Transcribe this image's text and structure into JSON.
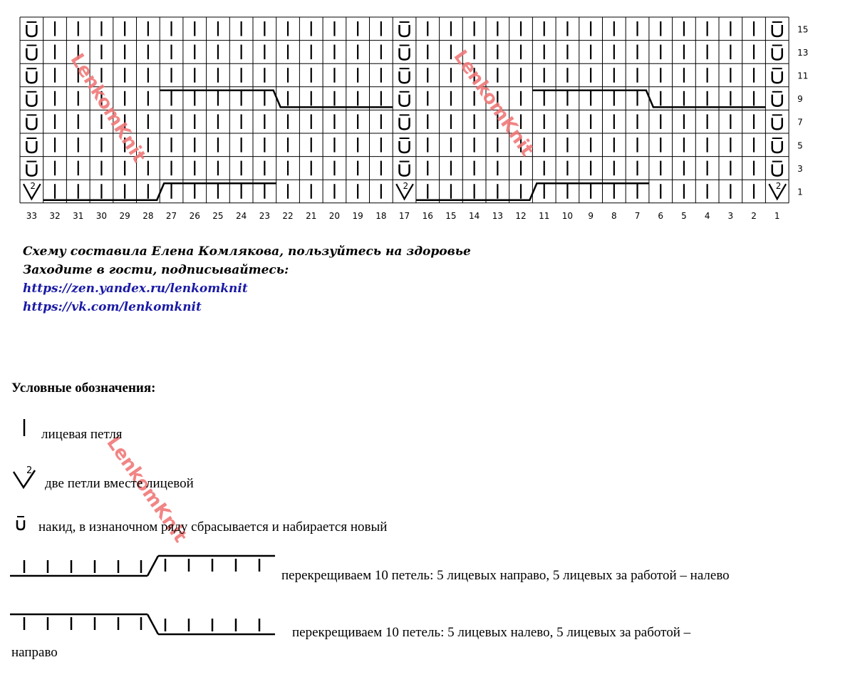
{
  "chart": {
    "row_labels": [
      "15",
      "13",
      "11",
      "9",
      "7",
      "5",
      "3",
      "1"
    ],
    "column_labels": [
      "33",
      "32",
      "31",
      "30",
      "29",
      "28",
      "27",
      "26",
      "25",
      "24",
      "23",
      "22",
      "21",
      "20",
      "19",
      "18",
      "17",
      "16",
      "15",
      "14",
      "13",
      "12",
      "11",
      "10",
      "9",
      "8",
      "7",
      "6",
      "5",
      "4",
      "3",
      "2",
      "1"
    ],
    "decrease_number": "2"
  },
  "note": {
    "line1": "Схему составила Елена Комлякова, пользуйтесь на здоровье",
    "line2": "Заходите в гости, подписывайтесь:",
    "link1": "https://zen.yandex.ru/lenkomknit",
    "link2": "https://vk.com/lenkomknit",
    "link_color": "#1a1aa6"
  },
  "legend": {
    "title": "Условные обозначения:",
    "items": [
      {
        "symbol": "knit-stitch",
        "text": "лицевая петля"
      },
      {
        "symbol": "k2tog",
        "number": "2",
        "text": "две петли вместе лицевой"
      },
      {
        "symbol": "yarn-over",
        "text": "накид, в изнаночном ряду сбрасывается и набирается новый"
      },
      {
        "symbol": "cable-right",
        "text": "перекрещиваем 10 петель: 5 лицевых направо, 5  лицевых за работой – налево"
      },
      {
        "symbol": "cable-left",
        "text": "перекрещиваем  10  петель:  5  лицевых  налево,  5  лицевых    за  работой  –",
        "text_wrap": "направо"
      }
    ]
  },
  "watermark": {
    "text": "LenkomKnit",
    "color": "#f07878"
  }
}
